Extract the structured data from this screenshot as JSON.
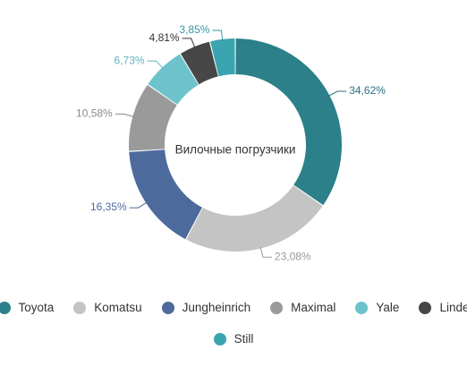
{
  "chart_data": {
    "type": "pie",
    "donut": true,
    "center_label": "Вилочные погрузчики",
    "legend_position": "bottom",
    "slices": [
      {
        "name": "Toyota",
        "value": 34.62,
        "label": "34,62%",
        "color": "#2b8089"
      },
      {
        "name": "Komatsu",
        "value": 23.08,
        "label": "23,08%",
        "color": "#c4c4c4"
      },
      {
        "name": "Jungheinrich",
        "value": 16.35,
        "label": "16,35%",
        "color": "#4c6a9c"
      },
      {
        "name": "Maximal",
        "value": 10.58,
        "label": "10,58%",
        "color": "#9a9a9a"
      },
      {
        "name": "Yale",
        "value": 6.73,
        "label": "6,73%",
        "color": "#6cc3cc"
      },
      {
        "name": "Linde",
        "value": 4.81,
        "label": "4,81%",
        "color": "#474747"
      },
      {
        "name": "Still",
        "value": 3.85,
        "label": "3,85%",
        "color": "#3aa4b0"
      }
    ],
    "label_colors": [
      "#2b6f80",
      "#9a9a9a",
      "#4c6a9c",
      "#8a8a8a",
      "#5fb3bd",
      "#333333",
      "#3a96a6"
    ]
  }
}
